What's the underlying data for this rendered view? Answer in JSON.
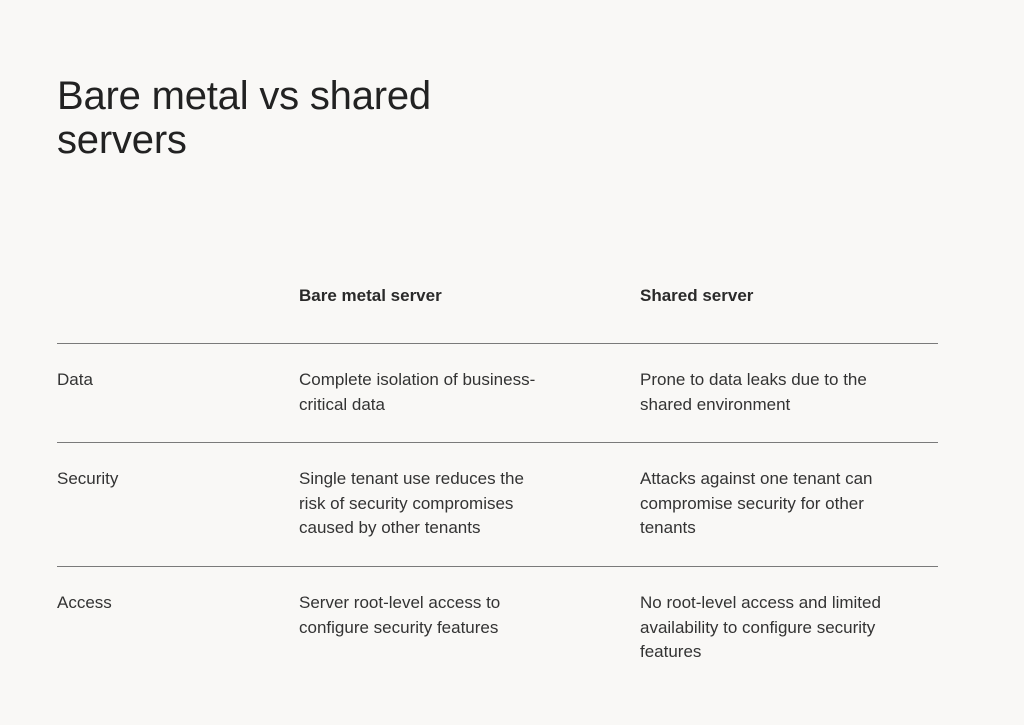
{
  "title": [
    "Bare metal vs shared",
    "servers"
  ],
  "table": {
    "headers": [
      "",
      "Bare metal server",
      "Shared server"
    ],
    "rows": [
      {
        "label": "Data",
        "bare_metal": [
          "Complete isolation of business-",
          "critical data"
        ],
        "shared": [
          "Prone to data leaks due to the",
          "shared environment"
        ]
      },
      {
        "label": "Security",
        "bare_metal": [
          "Single tenant use reduces the",
          "risk of security compromises",
          "caused by other tenants"
        ],
        "shared": [
          "Attacks against one tenant can",
          "compromise security for other",
          "tenants"
        ]
      },
      {
        "label": "Access",
        "bare_metal": [
          "Server root-level access to",
          "configure security features"
        ],
        "shared": [
          "No root-level access and limited",
          "availability to configure security",
          "features"
        ]
      }
    ]
  }
}
